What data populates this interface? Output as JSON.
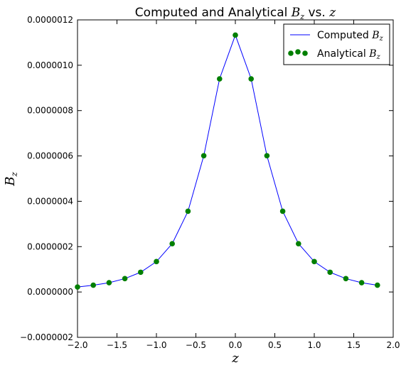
{
  "chart_data": {
    "type": "line",
    "title": {
      "text_prefix": "Computed and Analytical ",
      "math_var": "B",
      "math_sub": "z",
      "text_mid": " vs. ",
      "math_var2": "z"
    },
    "xlabel": "z",
    "ylabel": {
      "var": "B",
      "sub": "z"
    },
    "xlim": [
      -2.0,
      2.0
    ],
    "ylim": [
      -2e-07,
      1.2e-06
    ],
    "xticks": [
      -2.0,
      -1.5,
      -1.0,
      -0.5,
      0.0,
      0.5,
      1.0,
      1.5,
      2.0
    ],
    "xtick_labels": [
      "−2.0",
      "−1.5",
      "−1.0",
      "−0.5",
      "0.0",
      "0.5",
      "1.0",
      "1.5",
      "2.0"
    ],
    "yticks": [
      -2e-07,
      0.0,
      2e-07,
      4e-07,
      6e-07,
      8e-07,
      1e-06,
      1.2e-06
    ],
    "ytick_labels": [
      "−0.0000002",
      "0.0000000",
      "0.0000002",
      "0.0000004",
      "0.0000006",
      "0.0000008",
      "0.0000010",
      "0.0000012"
    ],
    "grid": false,
    "legend_position": "top-right",
    "x": [
      -2.0,
      -1.8,
      -1.6,
      -1.4,
      -1.2,
      -1.0,
      -0.8,
      -0.6,
      -0.4,
      -0.2,
      0.0,
      0.2,
      0.4,
      0.6,
      0.8,
      1.0,
      1.2,
      1.4,
      1.6,
      1.8
    ],
    "series": [
      {
        "name_text": "Computed ",
        "name_var": "B",
        "name_sub": "z",
        "style": "line",
        "color": "#0000ff",
        "values": [
          2.2e-08,
          3e-08,
          4.1e-08,
          5.9e-08,
          8.7e-08,
          1.34e-07,
          2.13e-07,
          3.56e-07,
          6.01e-07,
          9.4e-07,
          1.133e-06,
          9.4e-07,
          6.01e-07,
          3.56e-07,
          2.13e-07,
          1.34e-07,
          8.7e-08,
          5.9e-08,
          4.1e-08,
          3e-08
        ]
      },
      {
        "name_text": "Analytical ",
        "name_var": "B",
        "name_sub": "z",
        "style": "markers",
        "color": "#007f00",
        "values": [
          2.2e-08,
          3e-08,
          4.1e-08,
          5.9e-08,
          8.7e-08,
          1.34e-07,
          2.13e-07,
          3.56e-07,
          6.01e-07,
          9.4e-07,
          1.133e-06,
          9.4e-07,
          6.01e-07,
          3.56e-07,
          2.13e-07,
          1.34e-07,
          8.7e-08,
          5.9e-08,
          4.1e-08,
          3e-08
        ]
      }
    ]
  }
}
